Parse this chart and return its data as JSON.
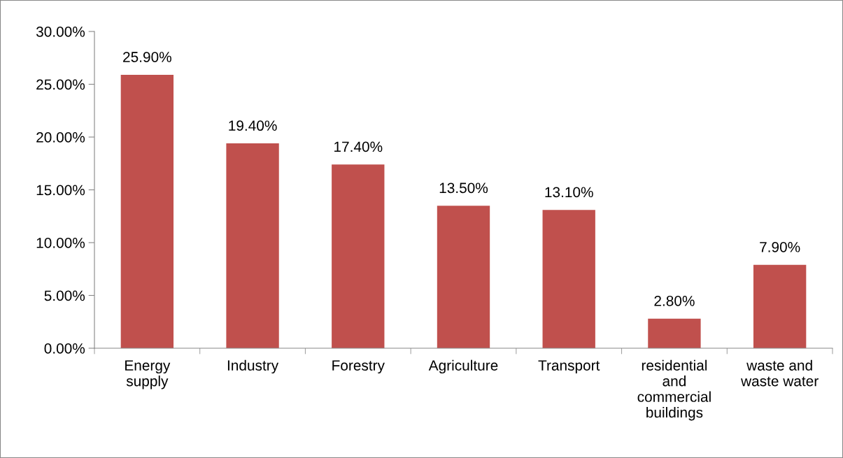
{
  "chart_data": {
    "type": "bar",
    "categories": [
      "Energy\nsupply",
      "Industry",
      "Forestry",
      "Agriculture",
      "Transport",
      "residential\nand\ncommercial\nbuildings",
      "waste and\nwaste water"
    ],
    "values": [
      25.9,
      19.4,
      17.4,
      13.5,
      13.1,
      2.8,
      7.9
    ],
    "value_labels": [
      "25.90%",
      "19.40%",
      "17.40%",
      "13.50%",
      "13.10%",
      "2.80%",
      "7.90%"
    ],
    "color": "#c0504d",
    "ylim": [
      0,
      30
    ],
    "yticks": [
      {
        "value": 0,
        "label": "0.00%"
      },
      {
        "value": 5,
        "label": "5.00%"
      },
      {
        "value": 10,
        "label": "10.00%"
      },
      {
        "value": 15,
        "label": "15.00%"
      },
      {
        "value": 20,
        "label": "20.00%"
      },
      {
        "value": 25,
        "label": "25.00%"
      },
      {
        "value": 30,
        "label": "30.00%"
      }
    ],
    "grid": false,
    "legend": false
  }
}
